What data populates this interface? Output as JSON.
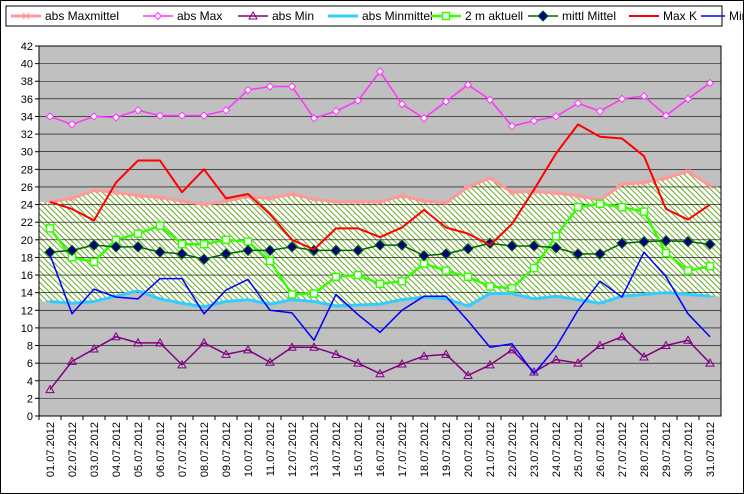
{
  "colors": {
    "abs_maxmittel": "#ff9999",
    "abs_max": "#ff33ff",
    "abs_min": "#800080",
    "abs_minmittel": "#33ccff",
    "aktuell": "#33ff00",
    "mittl_mittel": "#006600",
    "max_k": "#ff0000",
    "min_k": "#0000ff",
    "plot_bg": "#c0c0c0",
    "band_fill": "#99cc66"
  },
  "chart_data": {
    "type": "line",
    "title": "",
    "xlabel": "",
    "ylabel": "",
    "ylim": [
      0,
      42
    ],
    "yticks": [
      0,
      2,
      4,
      6,
      8,
      10,
      12,
      14,
      16,
      18,
      20,
      22,
      24,
      26,
      28,
      30,
      32,
      34,
      36,
      38,
      40,
      42
    ],
    "grid": true,
    "legend_position": "top",
    "categories": [
      "01.07.2012",
      "02.07.2012",
      "03.07.2012",
      "04.07.2012",
      "05.07.2012",
      "06.07.2012",
      "07.07.2012",
      "08.07.2012",
      "09.07.2012",
      "10.07.2012",
      "11.07.2012",
      "12.07.2012",
      "13.07.2012",
      "14.07.2012",
      "15.07.2012",
      "16.07.2012",
      "17.07.2012",
      "18.07.2012",
      "19.07.2012",
      "20.07.2012",
      "21.07.2012",
      "22.07.2012",
      "23.07.2012",
      "24.07.2012",
      "25.07.2012",
      "26.07.2012",
      "27.07.2012",
      "28.07.2012",
      "29.07.2012",
      "30.07.2012",
      "31.07.2012"
    ],
    "series": [
      {
        "name": "abs Maxmittel",
        "key": "abs_maxmittel",
        "values": [
          24.3,
          24.7,
          25.6,
          25.4,
          25.0,
          24.8,
          24.4,
          24.0,
          24.4,
          24.9,
          24.7,
          25.2,
          24.6,
          24.3,
          24.3,
          24.3,
          25.0,
          24.4,
          24.2,
          26.0,
          27.0,
          25.4,
          25.5,
          25.3,
          25.0,
          24.5,
          26.3,
          26.5,
          27.0,
          27.8,
          26.1
        ]
      },
      {
        "name": "abs Max",
        "key": "abs_max",
        "values": [
          34.0,
          33.1,
          34.0,
          33.9,
          34.7,
          34.1,
          34.1,
          34.1,
          34.7,
          37.0,
          37.4,
          37.4,
          33.8,
          34.6,
          35.8,
          39.1,
          35.4,
          33.8,
          35.7,
          37.6,
          35.9,
          32.9,
          33.5,
          34.0,
          35.5,
          34.6,
          36.0,
          36.3,
          34.1,
          36.0,
          37.8
        ]
      },
      {
        "name": "abs Min",
        "key": "abs_min",
        "values": [
          3.0,
          6.2,
          7.6,
          9.0,
          8.3,
          8.3,
          5.8,
          8.3,
          7.0,
          7.5,
          6.1,
          7.8,
          7.8,
          7.0,
          6.0,
          4.8,
          5.9,
          6.8,
          7.0,
          4.6,
          5.8,
          7.5,
          5.0,
          6.4,
          6.0,
          8.0,
          9.0,
          6.7,
          8.0,
          8.6,
          6.0
        ]
      },
      {
        "name": "abs Minmittel",
        "key": "abs_minmittel",
        "values": [
          13.0,
          12.8,
          13.0,
          13.6,
          14.2,
          13.3,
          12.8,
          12.4,
          13.0,
          13.2,
          12.7,
          13.2,
          13.0,
          12.5,
          12.6,
          12.7,
          13.2,
          13.5,
          13.3,
          12.5,
          13.9,
          13.9,
          13.3,
          13.6,
          13.2,
          12.8,
          13.6,
          13.8,
          14.0,
          13.8,
          13.6
        ]
      },
      {
        "name": "2 m aktuell",
        "key": "aktuell",
        "values": [
          21.3,
          18.0,
          17.5,
          20.0,
          20.7,
          21.6,
          19.5,
          19.5,
          20.0,
          19.8,
          17.6,
          13.8,
          13.9,
          15.8,
          16.0,
          15.0,
          15.3,
          17.3,
          16.5,
          15.8,
          14.7,
          14.5,
          16.8,
          20.4,
          23.7,
          24.1,
          23.7,
          23.2,
          18.5,
          16.5,
          17.0
        ]
      },
      {
        "name": "mittl Mittel",
        "key": "mittl_mittel",
        "values": [
          18.6,
          18.8,
          19.4,
          19.2,
          19.2,
          18.6,
          18.4,
          17.8,
          18.4,
          18.8,
          18.8,
          19.2,
          18.8,
          18.8,
          18.8,
          19.4,
          19.4,
          18.2,
          18.4,
          19.0,
          19.6,
          19.3,
          19.3,
          19.1,
          18.4,
          18.4,
          19.6,
          19.8,
          19.9,
          19.8,
          19.5
        ]
      },
      {
        "name": "Max K",
        "key": "max_k",
        "values": [
          24.3,
          23.5,
          22.2,
          26.5,
          29.0,
          29.0,
          25.4,
          28.0,
          24.7,
          25.2,
          22.9,
          20.0,
          18.9,
          21.3,
          21.3,
          20.3,
          21.4,
          23.4,
          21.4,
          20.7,
          19.4,
          21.8,
          25.7,
          29.8,
          33.1,
          31.7,
          31.5,
          29.5,
          23.5,
          22.3,
          24.0
        ]
      },
      {
        "name": "Min K",
        "key": "min_k",
        "values": [
          18.3,
          11.6,
          14.4,
          13.5,
          13.3,
          15.6,
          15.6,
          11.6,
          14.3,
          15.5,
          12.0,
          11.7,
          8.6,
          13.8,
          11.5,
          9.5,
          12.0,
          13.6,
          13.6,
          10.8,
          7.8,
          8.2,
          4.8,
          7.8,
          12.0,
          15.3,
          13.5,
          18.6,
          15.8,
          11.6,
          9.0
        ]
      }
    ]
  }
}
